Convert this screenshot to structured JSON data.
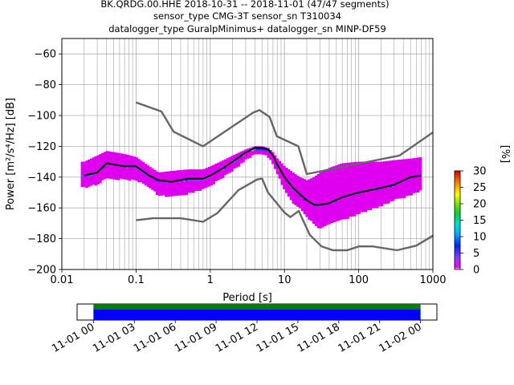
{
  "title_lines": [
    "BK.QRDG.00.HHE   2018-10-31 -- 2018-11-01  (47/47 segments)",
    "sensor_type CMG-3T sensor_sn T310034",
    "datalogger_type GuralpMinimus+ datalogger_sn MINP-DF59"
  ],
  "chart_data": [
    {
      "type": "heatmap",
      "subtype": "ppsd",
      "xlabel": "Period [s]",
      "ylabel": "Power [m²/s⁴/Hz] [dB]",
      "xscale": "log",
      "xlim": [
        0.01,
        1000
      ],
      "ylim": [
        -200,
        -50
      ],
      "x_ticks": [
        0.01,
        0.1,
        1,
        10,
        100,
        1000
      ],
      "x_tick_labels": [
        "0.01",
        "0.1",
        "1",
        "10",
        "100",
        "1000"
      ],
      "y_ticks": [
        -200,
        -180,
        -160,
        -140,
        -120,
        -100,
        -80,
        -60
      ],
      "y_tick_labels": [
        "−200",
        "−180",
        "−160",
        "−140",
        "−120",
        "−100",
        "−80",
        "−60"
      ],
      "grid": true,
      "colorbar": {
        "label": "[%]",
        "min": 0,
        "max": 30,
        "ticks": [
          0,
          5,
          10,
          15,
          20,
          25,
          30
        ],
        "tick_labels": [
          "0",
          "5",
          "10",
          "15",
          "20",
          "25",
          "30"
        ]
      },
      "series": [
        {
          "role": "noise-model-high",
          "color": "#666666",
          "x": [
            0.1,
            0.22,
            0.32,
            0.8,
            3.8,
            4.6,
            6.3,
            7.9,
            15.4,
            20,
            354.8,
            1000
          ],
          "y": [
            -91.5,
            -97.4,
            -110.5,
            -120,
            -98,
            -96.5,
            -101,
            -113.5,
            -120,
            -138,
            -126,
            -111
          ]
        },
        {
          "role": "noise-model-low",
          "color": "#666666",
          "x": [
            0.1,
            0.17,
            0.4,
            0.8,
            1.24,
            2.4,
            4.3,
            5.0,
            6.0,
            10,
            12,
            15.6,
            21.9,
            31.6,
            45,
            70,
            101,
            154,
            328,
            600,
            1000
          ],
          "y": [
            -168,
            -166.7,
            -166.7,
            -169,
            -163.5,
            -148.5,
            -141.5,
            -141,
            -150,
            -163,
            -166,
            -162,
            -177.5,
            -185,
            -187.5,
            -187.5,
            -185,
            -185,
            -187.5,
            -184.5,
            -178
          ]
        },
        {
          "role": "mode",
          "color": "#000000",
          "x": [
            0.02,
            0.03,
            0.04,
            0.07,
            0.1,
            0.15,
            0.2,
            0.3,
            0.5,
            0.8,
            1,
            1.5,
            2,
            3,
            4,
            5,
            6,
            7,
            8,
            10,
            13,
            16,
            20,
            25,
            30,
            40,
            60,
            100,
            200,
            300,
            500,
            700
          ],
          "y": [
            -139,
            -137,
            -131,
            -133,
            -133,
            -139,
            -142,
            -143,
            -141,
            -141,
            -139,
            -134,
            -130,
            -124,
            -121,
            -121,
            -122,
            -126,
            -132,
            -140,
            -147,
            -151,
            -155,
            -158,
            -158,
            -157,
            -153,
            -150,
            -147,
            -145,
            -140,
            -139
          ]
        }
      ],
      "density_band": {
        "period_range": [
          0.018,
          700
        ],
        "x": [
          0.02,
          0.03,
          0.04,
          0.07,
          0.1,
          0.15,
          0.2,
          0.3,
          0.5,
          0.8,
          1,
          1.5,
          2,
          3,
          4,
          5,
          6,
          7,
          8,
          10,
          13,
          16,
          20,
          25,
          30,
          40,
          60,
          100,
          200,
          300,
          500,
          700
        ],
        "upper": [
          -130,
          -126,
          -123,
          -125,
          -127,
          -133,
          -137,
          -136,
          -135,
          -135,
          -133,
          -129,
          -126,
          -122,
          -120,
          -120,
          -121,
          -124,
          -128,
          -133,
          -137,
          -140,
          -142,
          -140,
          -137,
          -134,
          -131,
          -130,
          -130,
          -129,
          -128,
          -127
        ],
        "lower": [
          -146,
          -144,
          -140,
          -141,
          -141,
          -146,
          -151,
          -152,
          -150,
          -147,
          -145,
          -139,
          -135,
          -128,
          -124,
          -124,
          -126,
          -131,
          -137,
          -148,
          -156,
          -159,
          -165,
          -170,
          -173,
          -170,
          -167,
          -163,
          -158,
          -154,
          -151,
          -148
        ]
      }
    },
    {
      "type": "timeline",
      "x_tick_labels": [
        "11-01 00",
        "11-01 03",
        "11-01 06",
        "11-01 09",
        "11-01 12",
        "11-01 15",
        "11-01 18",
        "11-01 21",
        "11-02 00"
      ],
      "range_hours": [
        -1.2,
        25.2
      ],
      "segments": [
        {
          "role": "data",
          "color": "#008000",
          "start_hour": 0,
          "end_hour": 24
        },
        {
          "role": "used",
          "color": "#0000ff",
          "start_hour": 0,
          "end_hour": 24
        }
      ]
    }
  ]
}
